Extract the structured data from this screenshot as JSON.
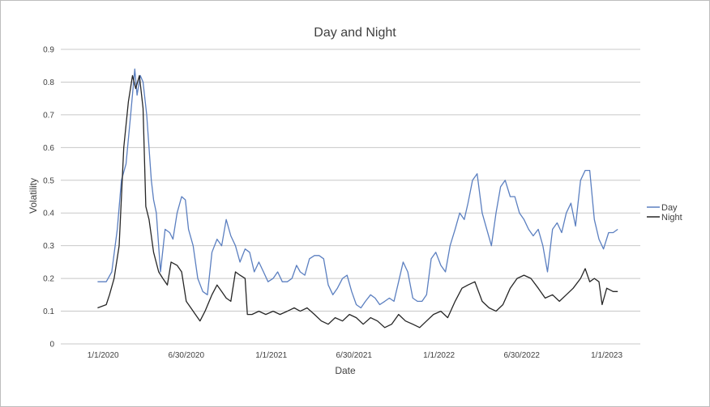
{
  "chart_data": {
    "type": "line",
    "title": "Day and Night",
    "xlabel": "Date",
    "ylabel": "Volatility",
    "ylim": [
      0,
      0.9
    ],
    "yticks": [
      0,
      0.1,
      0.2,
      0.3,
      0.4,
      0.5,
      0.6,
      0.7,
      0.8,
      0.9
    ],
    "ytick_labels": [
      "0",
      "0.1",
      "0.2",
      "0.3",
      "0.4",
      "0.5",
      "0.6",
      "0.7",
      "0.8",
      "0.9"
    ],
    "xlim": [
      "2019-10-01",
      "2023-03-15"
    ],
    "xticks": [
      "2020-01-01",
      "2020-06-30",
      "2021-01-01",
      "2021-06-30",
      "2022-01-01",
      "2022-06-30",
      "2023-01-01"
    ],
    "xtick_labels": [
      "1/1/2020",
      "6/30/2020",
      "1/1/2021",
      "6/30/2021",
      "1/1/2022",
      "6/30/2022",
      "1/1/2023"
    ],
    "grid": true,
    "legend_position": "right",
    "series": [
      {
        "name": "Day",
        "color": "#5b7fc0",
        "points": [
          [
            "2019-12-20",
            0.19
          ],
          [
            "2020-01-08",
            0.19
          ],
          [
            "2020-01-20",
            0.22
          ],
          [
            "2020-02-01",
            0.35
          ],
          [
            "2020-02-10",
            0.5
          ],
          [
            "2020-02-20",
            0.55
          ],
          [
            "2020-03-01",
            0.7
          ],
          [
            "2020-03-10",
            0.84
          ],
          [
            "2020-03-15",
            0.76
          ],
          [
            "2020-03-22",
            0.82
          ],
          [
            "2020-03-28",
            0.8
          ],
          [
            "2020-04-05",
            0.7
          ],
          [
            "2020-04-15",
            0.5
          ],
          [
            "2020-04-20",
            0.44
          ],
          [
            "2020-04-26",
            0.4
          ],
          [
            "2020-05-05",
            0.22
          ],
          [
            "2020-05-15",
            0.35
          ],
          [
            "2020-05-25",
            0.34
          ],
          [
            "2020-06-01",
            0.32
          ],
          [
            "2020-06-10",
            0.4
          ],
          [
            "2020-06-20",
            0.45
          ],
          [
            "2020-06-28",
            0.44
          ],
          [
            "2020-07-05",
            0.35
          ],
          [
            "2020-07-15",
            0.3
          ],
          [
            "2020-07-25",
            0.2
          ],
          [
            "2020-08-05",
            0.16
          ],
          [
            "2020-08-15",
            0.15
          ],
          [
            "2020-08-25",
            0.28
          ],
          [
            "2020-09-05",
            0.32
          ],
          [
            "2020-09-15",
            0.3
          ],
          [
            "2020-09-25",
            0.38
          ],
          [
            "2020-10-05",
            0.33
          ],
          [
            "2020-10-15",
            0.3
          ],
          [
            "2020-10-25",
            0.25
          ],
          [
            "2020-11-05",
            0.29
          ],
          [
            "2020-11-15",
            0.28
          ],
          [
            "2020-11-25",
            0.22
          ],
          [
            "2020-12-05",
            0.25
          ],
          [
            "2020-12-15",
            0.22
          ],
          [
            "2020-12-25",
            0.19
          ],
          [
            "2021-01-05",
            0.2
          ],
          [
            "2021-01-15",
            0.22
          ],
          [
            "2021-01-25",
            0.19
          ],
          [
            "2021-02-05",
            0.19
          ],
          [
            "2021-02-15",
            0.2
          ],
          [
            "2021-02-25",
            0.24
          ],
          [
            "2021-03-05",
            0.22
          ],
          [
            "2021-03-15",
            0.21
          ],
          [
            "2021-03-25",
            0.26
          ],
          [
            "2021-04-05",
            0.27
          ],
          [
            "2021-04-15",
            0.27
          ],
          [
            "2021-04-25",
            0.26
          ],
          [
            "2021-05-05",
            0.18
          ],
          [
            "2021-05-15",
            0.15
          ],
          [
            "2021-05-25",
            0.17
          ],
          [
            "2021-06-05",
            0.2
          ],
          [
            "2021-06-15",
            0.21
          ],
          [
            "2021-06-25",
            0.16
          ],
          [
            "2021-07-05",
            0.12
          ],
          [
            "2021-07-15",
            0.11
          ],
          [
            "2021-07-25",
            0.13
          ],
          [
            "2021-08-05",
            0.15
          ],
          [
            "2021-08-15",
            0.14
          ],
          [
            "2021-08-25",
            0.12
          ],
          [
            "2021-09-05",
            0.13
          ],
          [
            "2021-09-15",
            0.14
          ],
          [
            "2021-09-25",
            0.13
          ],
          [
            "2021-10-05",
            0.19
          ],
          [
            "2021-10-15",
            0.25
          ],
          [
            "2021-10-25",
            0.22
          ],
          [
            "2021-11-05",
            0.14
          ],
          [
            "2021-11-15",
            0.13
          ],
          [
            "2021-11-25",
            0.13
          ],
          [
            "2021-12-05",
            0.15
          ],
          [
            "2021-12-15",
            0.26
          ],
          [
            "2021-12-25",
            0.28
          ],
          [
            "2022-01-05",
            0.24
          ],
          [
            "2022-01-15",
            0.22
          ],
          [
            "2022-01-25",
            0.3
          ],
          [
            "2022-02-05",
            0.35
          ],
          [
            "2022-02-15",
            0.4
          ],
          [
            "2022-02-25",
            0.38
          ],
          [
            "2022-03-05",
            0.43
          ],
          [
            "2022-03-15",
            0.5
          ],
          [
            "2022-03-25",
            0.52
          ],
          [
            "2022-04-05",
            0.4
          ],
          [
            "2022-04-15",
            0.35
          ],
          [
            "2022-04-25",
            0.3
          ],
          [
            "2022-05-05",
            0.4
          ],
          [
            "2022-05-15",
            0.48
          ],
          [
            "2022-05-25",
            0.5
          ],
          [
            "2022-06-05",
            0.45
          ],
          [
            "2022-06-15",
            0.45
          ],
          [
            "2022-06-25",
            0.4
          ],
          [
            "2022-07-05",
            0.38
          ],
          [
            "2022-07-15",
            0.35
          ],
          [
            "2022-07-25",
            0.33
          ],
          [
            "2022-08-05",
            0.35
          ],
          [
            "2022-08-15",
            0.3
          ],
          [
            "2022-08-25",
            0.22
          ],
          [
            "2022-09-05",
            0.35
          ],
          [
            "2022-09-15",
            0.37
          ],
          [
            "2022-09-25",
            0.34
          ],
          [
            "2022-10-05",
            0.4
          ],
          [
            "2022-10-15",
            0.43
          ],
          [
            "2022-10-25",
            0.36
          ],
          [
            "2022-11-05",
            0.5
          ],
          [
            "2022-11-15",
            0.53
          ],
          [
            "2022-11-25",
            0.53
          ],
          [
            "2022-12-05",
            0.38
          ],
          [
            "2022-12-15",
            0.32
          ],
          [
            "2022-12-25",
            0.29
          ],
          [
            "2023-01-05",
            0.34
          ],
          [
            "2023-01-15",
            0.34
          ],
          [
            "2023-01-25",
            0.35
          ]
        ]
      },
      {
        "name": "Night",
        "color": "#262626",
        "points": [
          [
            "2019-12-20",
            0.11
          ],
          [
            "2020-01-08",
            0.12
          ],
          [
            "2020-01-15",
            0.15
          ],
          [
            "2020-01-25",
            0.2
          ],
          [
            "2020-02-05",
            0.3
          ],
          [
            "2020-02-15",
            0.6
          ],
          [
            "2020-02-25",
            0.74
          ],
          [
            "2020-03-05",
            0.82
          ],
          [
            "2020-03-12",
            0.78
          ],
          [
            "2020-03-20",
            0.82
          ],
          [
            "2020-03-28",
            0.72
          ],
          [
            "2020-04-03",
            0.42
          ],
          [
            "2020-04-10",
            0.38
          ],
          [
            "2020-04-20",
            0.28
          ],
          [
            "2020-05-01",
            0.22
          ],
          [
            "2020-05-10",
            0.2
          ],
          [
            "2020-05-20",
            0.18
          ],
          [
            "2020-05-28",
            0.25
          ],
          [
            "2020-06-10",
            0.24
          ],
          [
            "2020-06-20",
            0.22
          ],
          [
            "2020-06-30",
            0.13
          ],
          [
            "2020-07-10",
            0.11
          ],
          [
            "2020-07-20",
            0.09
          ],
          [
            "2020-07-30",
            0.07
          ],
          [
            "2020-08-10",
            0.1
          ],
          [
            "2020-08-25",
            0.15
          ],
          [
            "2020-09-05",
            0.18
          ],
          [
            "2020-09-15",
            0.16
          ],
          [
            "2020-09-25",
            0.14
          ],
          [
            "2020-10-05",
            0.13
          ],
          [
            "2020-10-15",
            0.22
          ],
          [
            "2020-10-25",
            0.21
          ],
          [
            "2020-11-05",
            0.2
          ],
          [
            "2020-11-10",
            0.09
          ],
          [
            "2020-11-20",
            0.09
          ],
          [
            "2020-12-05",
            0.1
          ],
          [
            "2020-12-20",
            0.09
          ],
          [
            "2021-01-05",
            0.1
          ],
          [
            "2021-01-20",
            0.09
          ],
          [
            "2021-02-05",
            0.1
          ],
          [
            "2021-02-20",
            0.11
          ],
          [
            "2021-03-05",
            0.1
          ],
          [
            "2021-03-20",
            0.11
          ],
          [
            "2021-04-05",
            0.09
          ],
          [
            "2021-04-20",
            0.07
          ],
          [
            "2021-05-05",
            0.06
          ],
          [
            "2021-05-20",
            0.08
          ],
          [
            "2021-06-05",
            0.07
          ],
          [
            "2021-06-20",
            0.09
          ],
          [
            "2021-07-05",
            0.08
          ],
          [
            "2021-07-20",
            0.06
          ],
          [
            "2021-08-05",
            0.08
          ],
          [
            "2021-08-20",
            0.07
          ],
          [
            "2021-09-05",
            0.05
          ],
          [
            "2021-09-20",
            0.06
          ],
          [
            "2021-10-05",
            0.09
          ],
          [
            "2021-10-20",
            0.07
          ],
          [
            "2021-11-05",
            0.06
          ],
          [
            "2021-11-20",
            0.05
          ],
          [
            "2021-12-05",
            0.07
          ],
          [
            "2021-12-20",
            0.09
          ],
          [
            "2022-01-05",
            0.1
          ],
          [
            "2022-01-20",
            0.08
          ],
          [
            "2022-02-05",
            0.13
          ],
          [
            "2022-02-20",
            0.17
          ],
          [
            "2022-03-05",
            0.18
          ],
          [
            "2022-03-20",
            0.19
          ],
          [
            "2022-04-05",
            0.13
          ],
          [
            "2022-04-20",
            0.11
          ],
          [
            "2022-05-05",
            0.1
          ],
          [
            "2022-05-20",
            0.12
          ],
          [
            "2022-06-05",
            0.17
          ],
          [
            "2022-06-20",
            0.2
          ],
          [
            "2022-07-05",
            0.21
          ],
          [
            "2022-07-20",
            0.2
          ],
          [
            "2022-08-05",
            0.17
          ],
          [
            "2022-08-20",
            0.14
          ],
          [
            "2022-09-05",
            0.15
          ],
          [
            "2022-09-20",
            0.13
          ],
          [
            "2022-10-05",
            0.15
          ],
          [
            "2022-10-20",
            0.17
          ],
          [
            "2022-11-05",
            0.2
          ],
          [
            "2022-11-15",
            0.23
          ],
          [
            "2022-11-25",
            0.19
          ],
          [
            "2022-12-05",
            0.2
          ],
          [
            "2022-12-15",
            0.19
          ],
          [
            "2022-12-22",
            0.12
          ],
          [
            "2023-01-01",
            0.17
          ],
          [
            "2023-01-15",
            0.16
          ],
          [
            "2023-01-25",
            0.16
          ]
        ]
      }
    ]
  }
}
